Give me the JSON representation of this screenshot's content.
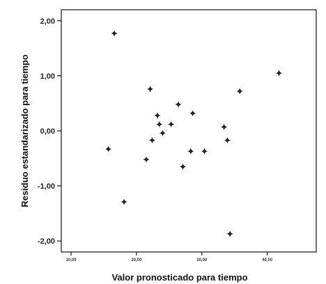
{
  "chart_data": {
    "type": "scatter",
    "xlabel": "Valor pronosticado para tiempo",
    "ylabel": "Residuo estandarizado para tiempo",
    "xlim": [
      8.5,
      47.5
    ],
    "ylim": [
      -2.2,
      2.2
    ],
    "x_ticks": [
      {
        "value": 10,
        "label": "10,00"
      },
      {
        "value": 20,
        "label": "20,00"
      },
      {
        "value": 30,
        "label": "30,00"
      },
      {
        "value": 40,
        "label": "40,00"
      }
    ],
    "y_ticks": [
      {
        "value": 2,
        "label": "2,00"
      },
      {
        "value": 1,
        "label": "1,00"
      },
      {
        "value": 0,
        "label": "0,00"
      },
      {
        "value": -1,
        "label": "-1,00"
      },
      {
        "value": -2,
        "label": "-2,00"
      }
    ],
    "grid": false,
    "points": [
      {
        "x": 16.6,
        "y": 1.77
      },
      {
        "x": 15.7,
        "y": -0.33
      },
      {
        "x": 18.1,
        "y": -1.29
      },
      {
        "x": 21.5,
        "y": -0.52
      },
      {
        "x": 22.1,
        "y": 0.76
      },
      {
        "x": 22.4,
        "y": -0.17
      },
      {
        "x": 23.2,
        "y": 0.28
      },
      {
        "x": 23.5,
        "y": 0.12
      },
      {
        "x": 24.0,
        "y": -0.04
      },
      {
        "x": 25.3,
        "y": 0.12
      },
      {
        "x": 26.4,
        "y": 0.48
      },
      {
        "x": 27.1,
        "y": -0.65
      },
      {
        "x": 28.3,
        "y": -0.37
      },
      {
        "x": 28.6,
        "y": 0.32
      },
      {
        "x": 30.4,
        "y": -0.37
      },
      {
        "x": 33.4,
        "y": 0.07
      },
      {
        "x": 33.9,
        "y": -0.17
      },
      {
        "x": 34.3,
        "y": -1.87
      },
      {
        "x": 35.8,
        "y": 0.72
      },
      {
        "x": 41.8,
        "y": 1.05
      }
    ]
  }
}
